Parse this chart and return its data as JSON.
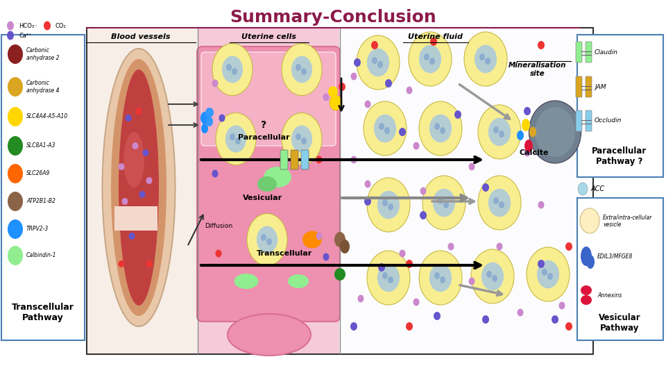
{
  "title": "Summary-Conclusion",
  "title_color": "#8B1A4A",
  "title_fontsize": 18,
  "bg_color": "#ffffff",
  "left_legend_items": [
    {
      "label": "Carbonic\nanhydrase 2",
      "color": "#8B2020"
    },
    {
      "label": "Carbonic\nanhydrase 4",
      "color": "#DAA520"
    },
    {
      "label": "SLC4A4-A5-A10",
      "color": "#FFD700"
    },
    {
      "label": "SLC8A1-A3",
      "color": "#228B22"
    },
    {
      "label": "SLC26A9",
      "color": "#FF6600"
    },
    {
      "label": "ATP2B1-B2",
      "color": "#8B6347"
    },
    {
      "label": "TRPV2-3",
      "color": "#1E90FF"
    },
    {
      "label": "Calbindin-1",
      "color": "#90EE90"
    }
  ],
  "left_legend_footer": "Transcellular\nPathway",
  "right_top_items": [
    {
      "label": "Claudin",
      "color": "#90EE90"
    },
    {
      "label": "JAM",
      "color": "#DAA520"
    },
    {
      "label": "Occludin",
      "color": "#87CEEB"
    }
  ],
  "right_top_footer": "Paracellular\nPathway ?",
  "right_bot_items": [
    {
      "label": "Extra/intra-cellular\nvesicle",
      "color": "#FFEFC0"
    },
    {
      "label": "EDIL3/MFGE8",
      "color": "#4169E1"
    },
    {
      "label": "Annexins",
      "color": "#DC143C"
    }
  ],
  "right_bot_footer": "Vesicular\nPathway",
  "hco3_color": "#CC88CC",
  "co2_color": "#EE3333",
  "ca2_color": "#6655CC",
  "bv_outer_color": "#E8A878",
  "bv_mid_color": "#D49060",
  "bv_inner_color": "#C05050",
  "uc_bg_color": "#F0A0B8",
  "uc_cell_color": "#E888A0",
  "fluid_dot_hco3": "#CC88CC",
  "fluid_dot_ca2": "#6655CC",
  "fluid_dot_co2": "#EE3333",
  "cell_outer": "#F0E890",
  "cell_inner": "#A0C8E0",
  "paracellular_arrow_color": "#111111",
  "transcellular_arrow_color": "#111111",
  "gray_arrow_color": "#888888",
  "sections": {
    "blood_vessels": "Blood vessels",
    "uterine_cells": "Uterine cells",
    "uterine_fluid": "Uterine fluid"
  },
  "mineralisation_label": "Mineralisation\nsite",
  "calcite_label": "Calcite",
  "diffusion_label": "Diffusion",
  "paracellular_label": "?\nParacellular",
  "vesicular_label": "Vesicular",
  "transcellular_label": "Transcellular",
  "acc_label": "ACC"
}
